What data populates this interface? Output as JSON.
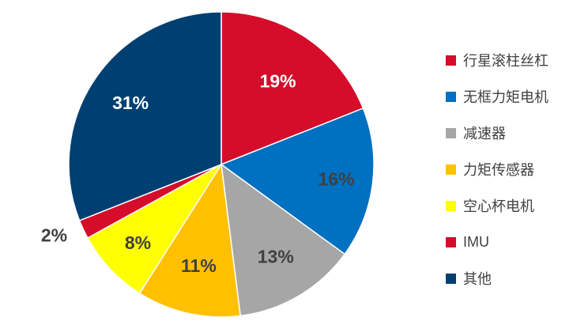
{
  "chart_data": {
    "type": "pie",
    "title": "",
    "legend_position": "right",
    "slices": [
      {
        "name": "行星滚柱丝杠",
        "value": 19,
        "label": "19%",
        "color": "#d50c2a",
        "label_color": "#ffffff"
      },
      {
        "name": "无框力矩电机",
        "value": 16,
        "label": "16%",
        "color": "#0070c0",
        "label_color": "#404040"
      },
      {
        "name": "减速器",
        "value": 13,
        "label": "13%",
        "color": "#a6a6a6",
        "label_color": "#404040"
      },
      {
        "name": "力矩传感器",
        "value": 11,
        "label": "11%",
        "color": "#ffc000",
        "label_color": "#404040"
      },
      {
        "name": "空心杯电机",
        "value": 8,
        "label": "8%",
        "color": "#ffff00",
        "label_color": "#404040"
      },
      {
        "name": "IMU",
        "value": 2,
        "label": "2%",
        "color": "#d50c2a",
        "label_color": "#404040"
      },
      {
        "name": "其他",
        "value": 31,
        "label": "31%",
        "color": "#003f72",
        "label_color": "#ffffff"
      }
    ]
  }
}
